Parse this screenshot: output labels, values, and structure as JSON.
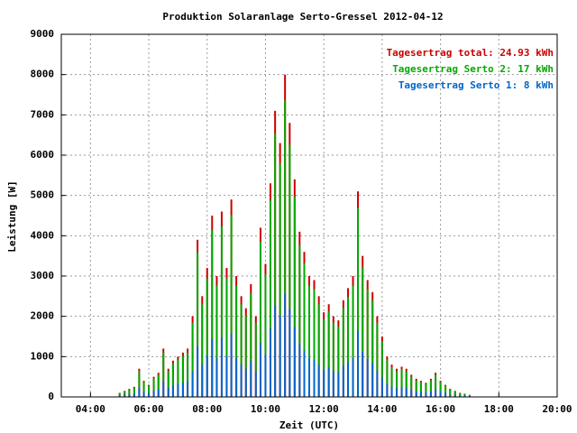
{
  "chart_data": {
    "type": "bar",
    "title": "Produktion Solaranlage Serto-Gressel 2012-04-12",
    "x_label": "Zeit (UTC)",
    "y_label": "Leistung [W]",
    "x": [
      5,
      5.17,
      5.33,
      5.5,
      5.67,
      5.83,
      6,
      6.17,
      6.33,
      6.5,
      6.67,
      6.83,
      7,
      7.17,
      7.33,
      7.5,
      7.67,
      7.83,
      8,
      8.17,
      8.33,
      8.5,
      8.67,
      8.83,
      9,
      9.17,
      9.33,
      9.5,
      9.67,
      9.83,
      10,
      10.17,
      10.33,
      10.5,
      10.67,
      10.83,
      11,
      11.17,
      11.33,
      11.5,
      11.67,
      11.83,
      12,
      12.17,
      12.33,
      12.5,
      12.67,
      12.83,
      13,
      13.17,
      13.33,
      13.5,
      13.67,
      13.83,
      14,
      14.17,
      14.33,
      14.5,
      14.67,
      14.83,
      15,
      15.17,
      15.33,
      15.5,
      15.67,
      15.83,
      16,
      16.17,
      16.33,
      16.5,
      16.67,
      16.83,
      17
    ],
    "series": [
      {
        "name": "Tagesertrag total: 24.93 kWh",
        "color": "#cc0000",
        "values": [
          100,
          150,
          200,
          250,
          700,
          400,
          300,
          500,
          600,
          1200,
          700,
          900,
          1000,
          1100,
          1200,
          2000,
          3900,
          2500,
          3200,
          4500,
          3000,
          4600,
          3200,
          4900,
          3000,
          2500,
          2200,
          2800,
          2000,
          4200,
          3300,
          5300,
          7100,
          6300,
          8000,
          6800,
          5400,
          4100,
          3600,
          3000,
          2900,
          2500,
          2100,
          2300,
          2000,
          1900,
          2400,
          2700,
          3000,
          5100,
          3500,
          2900,
          2600,
          2000,
          1500,
          1000,
          800,
          700,
          750,
          700,
          550,
          450,
          400,
          350,
          450,
          600,
          400,
          300,
          200,
          150,
          100,
          80,
          50
        ]
      },
      {
        "name": "Tagesertrag Serto 2: 17 kWh",
        "color": "#00aa00",
        "values": [
          60,
          90,
          120,
          150,
          420,
          240,
          180,
          300,
          360,
          720,
          420,
          540,
          600,
          660,
          720,
          1200,
          2340,
          1500,
          1920,
          2700,
          1800,
          2760,
          1920,
          2940,
          1800,
          1500,
          1320,
          1680,
          1200,
          2520,
          1980,
          3180,
          4260,
          3780,
          4800,
          4080,
          3240,
          2460,
          2160,
          1800,
          1740,
          1500,
          1260,
          1380,
          1200,
          1140,
          1440,
          1620,
          1800,
          3060,
          2100,
          1740,
          1560,
          1200,
          900,
          600,
          480,
          420,
          450,
          420,
          330,
          270,
          240,
          210,
          270,
          360,
          240,
          180,
          120,
          90,
          60,
          50,
          30
        ]
      },
      {
        "name": "Tagesertrag Serto 1: 8 kWh",
        "color": "#0066cc",
        "values": [
          30,
          50,
          60,
          80,
          220,
          130,
          100,
          160,
          190,
          380,
          220,
          290,
          320,
          350,
          380,
          640,
          1250,
          800,
          1020,
          1440,
          960,
          1470,
          1020,
          1570,
          960,
          800,
          700,
          900,
          640,
          1340,
          1060,
          1700,
          2270,
          2020,
          2560,
          2180,
          1730,
          1310,
          1150,
          960,
          930,
          800,
          670,
          740,
          640,
          610,
          770,
          860,
          960,
          1630,
          1120,
          930,
          830,
          640,
          480,
          320,
          260,
          220,
          240,
          220,
          180,
          140,
          130,
          110,
          140,
          190,
          130,
          100,
          60,
          50,
          30,
          30,
          20
        ]
      }
    ],
    "xlim": [
      3,
      20
    ],
    "xticks": [
      {
        "value": 4,
        "label": "04:00"
      },
      {
        "value": 6,
        "label": "06:00"
      },
      {
        "value": 8,
        "label": "08:00"
      },
      {
        "value": 10,
        "label": "10:00"
      },
      {
        "value": 12,
        "label": "12:00"
      },
      {
        "value": 14,
        "label": "14:00"
      },
      {
        "value": 16,
        "label": "16:00"
      },
      {
        "value": 18,
        "label": "18:00"
      },
      {
        "value": 20,
        "label": "20:00"
      }
    ],
    "ylim": [
      0,
      9000
    ],
    "yticks": [
      0,
      1000,
      2000,
      3000,
      4000,
      5000,
      6000,
      7000,
      8000,
      9000
    ],
    "grid": true,
    "legend": "top-right"
  }
}
